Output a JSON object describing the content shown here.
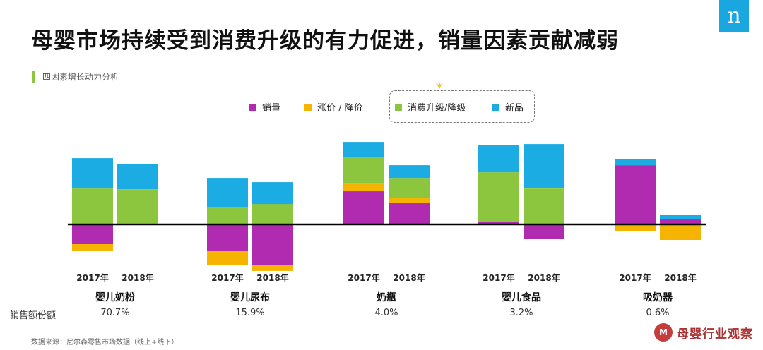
{
  "header": {
    "title": "母婴市场持续受到消费升级的有力促进，销量因素贡献减弱",
    "subtitle": "四因素增长动力分析",
    "logo_glyph": "n"
  },
  "chart_data": {
    "type": "bar",
    "stacked": true,
    "ylim": [
      -20,
      36
    ],
    "legend": [
      "销量",
      "涨价 / 降价",
      "消费升级/降级",
      "新品"
    ],
    "colors": {
      "销量": "#b12bb0",
      "涨价 / 降价": "#f4b400",
      "消费升级/降级": "#8cc63f",
      "新品": "#1aace3"
    },
    "groups": [
      {
        "category": "婴儿奶粉",
        "share": "70.7%",
        "bars": [
          {
            "year": "2017年",
            "销量": -8.4,
            "涨价 / 降价": -2.7,
            "消费升级/降级": 15.3,
            "新品": 12.9
          },
          {
            "year": "2018年",
            "销量": 0,
            "涨价 / 降价": 0.6,
            "消费升级/降级": 14.4,
            "新品": 10.7
          }
        ]
      },
      {
        "category": "婴儿尿布",
        "share": "15.9%",
        "bars": [
          {
            "year": "2017年",
            "销量": -11.4,
            "涨价 / 降价": -5.7,
            "消费升级/降级": 7.5,
            "新品": 12.3
          },
          {
            "year": "2018年",
            "销量": -17.4,
            "涨价 / 降价": -2.4,
            "消费升级/降级": 8.7,
            "新品": 9.3
          }
        ]
      },
      {
        "category": "奶瓶",
        "share": "4.0%",
        "bars": [
          {
            "year": "2017年",
            "销量": 14.1,
            "涨价 / 降价": 3.3,
            "消费升级/降级": 11.4,
            "新品": 6.3
          },
          {
            "year": "2018年",
            "销量": 9.0,
            "涨价 / 降价": 2.4,
            "消费升级/降级": 8.4,
            "新品": 5.4
          }
        ]
      },
      {
        "category": "婴儿食品",
        "share": "3.2%",
        "bars": [
          {
            "year": "2017年",
            "销量": 1.2,
            "涨价 / 降价": 0,
            "消费升级/降级": 21.0,
            "新品": 11.7
          },
          {
            "year": "2018年",
            "销量": -6.3,
            "涨价 / 降价": 0,
            "消费升级/降级": 15.3,
            "新品": 18.9
          }
        ]
      },
      {
        "category": "吸奶器",
        "share": "0.6%",
        "bars": [
          {
            "year": "2017年",
            "销量": 25.2,
            "涨价 / 降价": -3.0,
            "消费升级/降级": 0,
            "新品": 2.7
          },
          {
            "year": "2018年",
            "销量": 2.1,
            "涨价 / 降价": -6.6,
            "消费升级/降级": 0,
            "新品": 2.1
          }
        ]
      }
    ]
  },
  "sales_label": "销售额份额",
  "source": "数据来源：尼尔森零售市场数据（线上+线下）",
  "watermark": {
    "seal": "M",
    "text": "母婴行业观察"
  }
}
